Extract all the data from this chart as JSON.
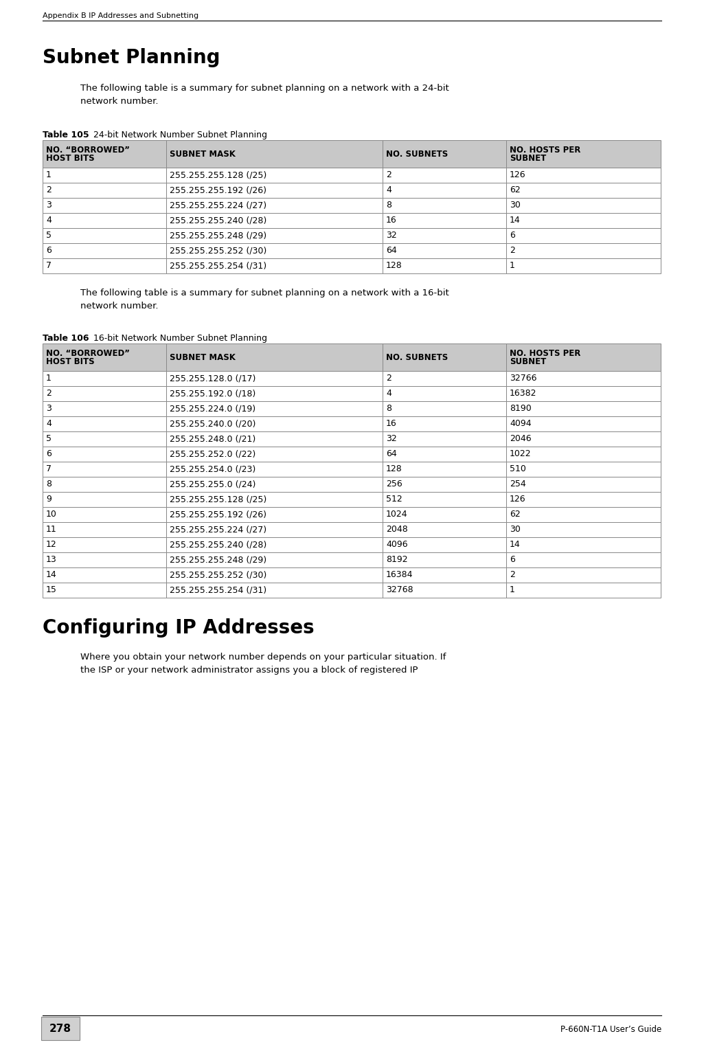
{
  "page_title": "Appendix B IP Addresses and Subnetting",
  "page_number": "278",
  "footer_right": "P-660N-T1A User’s Guide",
  "section_title": "Subnet Planning",
  "para1": "The following table is a summary for subnet planning on a network with a 24-bit\nnetwork number.",
  "table1_label_bold": "Table 105",
  "table1_label_normal": "   24-bit Network Number Subnet Planning",
  "table1_headers": [
    "NO. “BORROWED”\nHOST BITS",
    "SUBNET MASK",
    "NO. SUBNETS",
    "NO. HOSTS PER\nSUBNET"
  ],
  "table1_rows": [
    [
      "1",
      "255.255.255.128 (/25)",
      "2",
      "126"
    ],
    [
      "2",
      "255.255.255.192 (/26)",
      "4",
      "62"
    ],
    [
      "3",
      "255.255.255.224 (/27)",
      "8",
      "30"
    ],
    [
      "4",
      "255.255.255.240 (/28)",
      "16",
      "14"
    ],
    [
      "5",
      "255.255.255.248 (/29)",
      "32",
      "6"
    ],
    [
      "6",
      "255.255.255.252 (/30)",
      "64",
      "2"
    ],
    [
      "7",
      "255.255.255.254 (/31)",
      "128",
      "1"
    ]
  ],
  "para2": "The following table is a summary for subnet planning on a network with a 16-bit\nnetwork number.",
  "table2_label_bold": "Table 106",
  "table2_label_normal": "   16-bit Network Number Subnet Planning",
  "table2_headers": [
    "NO. “BORROWED”\nHOST BITS",
    "SUBNET MASK",
    "NO. SUBNETS",
    "NO. HOSTS PER\nSUBNET"
  ],
  "table2_rows": [
    [
      "1",
      "255.255.128.0 (/17)",
      "2",
      "32766"
    ],
    [
      "2",
      "255.255.192.0 (/18)",
      "4",
      "16382"
    ],
    [
      "3",
      "255.255.224.0 (/19)",
      "8",
      "8190"
    ],
    [
      "4",
      "255.255.240.0 (/20)",
      "16",
      "4094"
    ],
    [
      "5",
      "255.255.248.0 (/21)",
      "32",
      "2046"
    ],
    [
      "6",
      "255.255.252.0 (/22)",
      "64",
      "1022"
    ],
    [
      "7",
      "255.255.254.0 (/23)",
      "128",
      "510"
    ],
    [
      "8",
      "255.255.255.0 (/24)",
      "256",
      "254"
    ],
    [
      "9",
      "255.255.255.128 (/25)",
      "512",
      "126"
    ],
    [
      "10",
      "255.255.255.192 (/26)",
      "1024",
      "62"
    ],
    [
      "11",
      "255.255.255.224 (/27)",
      "2048",
      "30"
    ],
    [
      "12",
      "255.255.255.240 (/28)",
      "4096",
      "14"
    ],
    [
      "13",
      "255.255.255.248 (/29)",
      "8192",
      "6"
    ],
    [
      "14",
      "255.255.255.252 (/30)",
      "16384",
      "2"
    ],
    [
      "15",
      "255.255.255.254 (/31)",
      "32768",
      "1"
    ]
  ],
  "section2_title": "Configuring IP Addresses",
  "para3": "Where you obtain your network number depends on your particular situation. If\nthe ISP or your network administrator assigns you a block of registered IP",
  "bg_color": "#ffffff",
  "header_bg": "#c8c8c8",
  "border_color": "#888888",
  "text_color": "#000000"
}
